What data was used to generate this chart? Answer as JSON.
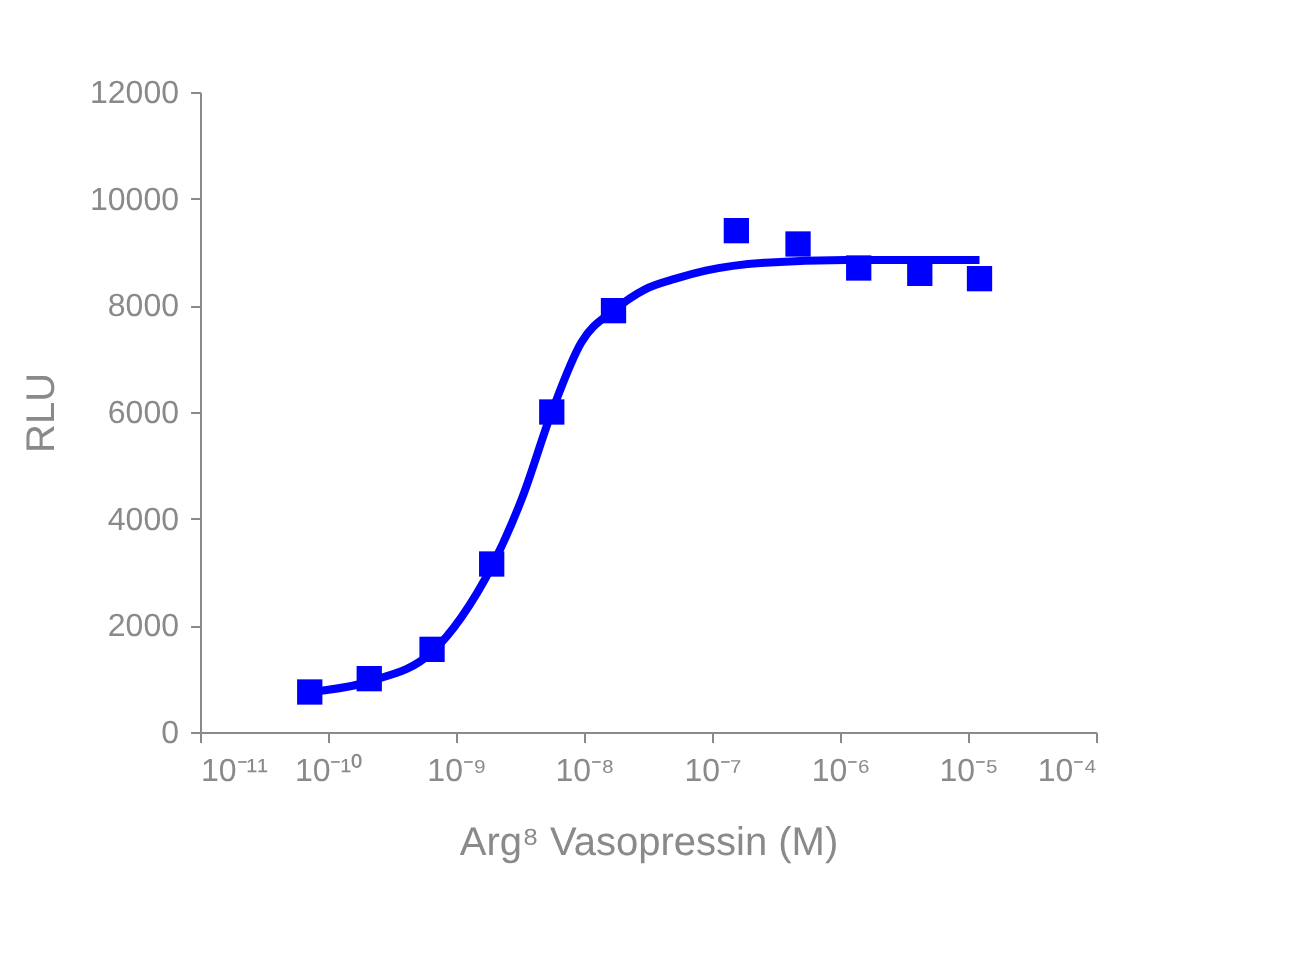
{
  "chart_data": {
    "type": "scatter",
    "xlabel": "Arg⁸ Vasopressin (M)",
    "ylabel": "RLU",
    "log": "x",
    "grid": false,
    "xlim": [
      1e-11,
      0.0001
    ],
    "xticks": [
      {
        "value": 1e-11,
        "label": "10⁻¹¹"
      },
      {
        "value": 1e-10,
        "label": "10⁻¹⁰"
      },
      {
        "value": 1e-09,
        "label": "10⁻⁹"
      },
      {
        "value": 1e-08,
        "label": "10⁻⁸"
      },
      {
        "value": 1e-07,
        "label": "10⁻⁷"
      },
      {
        "value": 1e-06,
        "label": "10⁻⁶"
      },
      {
        "value": 1e-05,
        "label": "10⁻⁵"
      },
      {
        "value": 0.0001,
        "label": "10⁻⁴"
      }
    ],
    "ylim": [
      0,
      12000
    ],
    "yticks": [
      0,
      2000,
      4000,
      6000,
      8000,
      10000,
      12000
    ],
    "series": [
      {
        "type": "scatter",
        "marker": "square",
        "color": "#0000ff",
        "x": [
          7.2e-11,
          2.1e-10,
          6.5e-10,
          1.9e-09,
          5.6e-09,
          1.7e-08,
          1.55e-07,
          4.7e-07,
          1.4e-06,
          4.2e-06,
          1.23e-05
        ],
        "values": [
          750,
          1000,
          1550,
          3150,
          6000,
          7900,
          9400,
          9150,
          8700,
          8600,
          8500
        ]
      },
      {
        "type": "line",
        "marker": "none",
        "color": "#0000ff",
        "x": [
          7.2e-11,
          2.1e-10,
          6.5e-10,
          1.1e-09,
          1.9e-09,
          3.3e-09,
          5.6e-09,
          9.5e-09,
          1.7e-08,
          3e-08,
          5.2e-08,
          8.9e-08,
          2.6e-07,
          1.1e-06,
          1.23e-05
        ],
        "values": [
          750,
          950,
          1500,
          2150,
          3100,
          4400,
          6000,
          7300,
          7900,
          8300,
          8500,
          8650,
          8800,
          8850,
          8850
        ]
      }
    ]
  }
}
